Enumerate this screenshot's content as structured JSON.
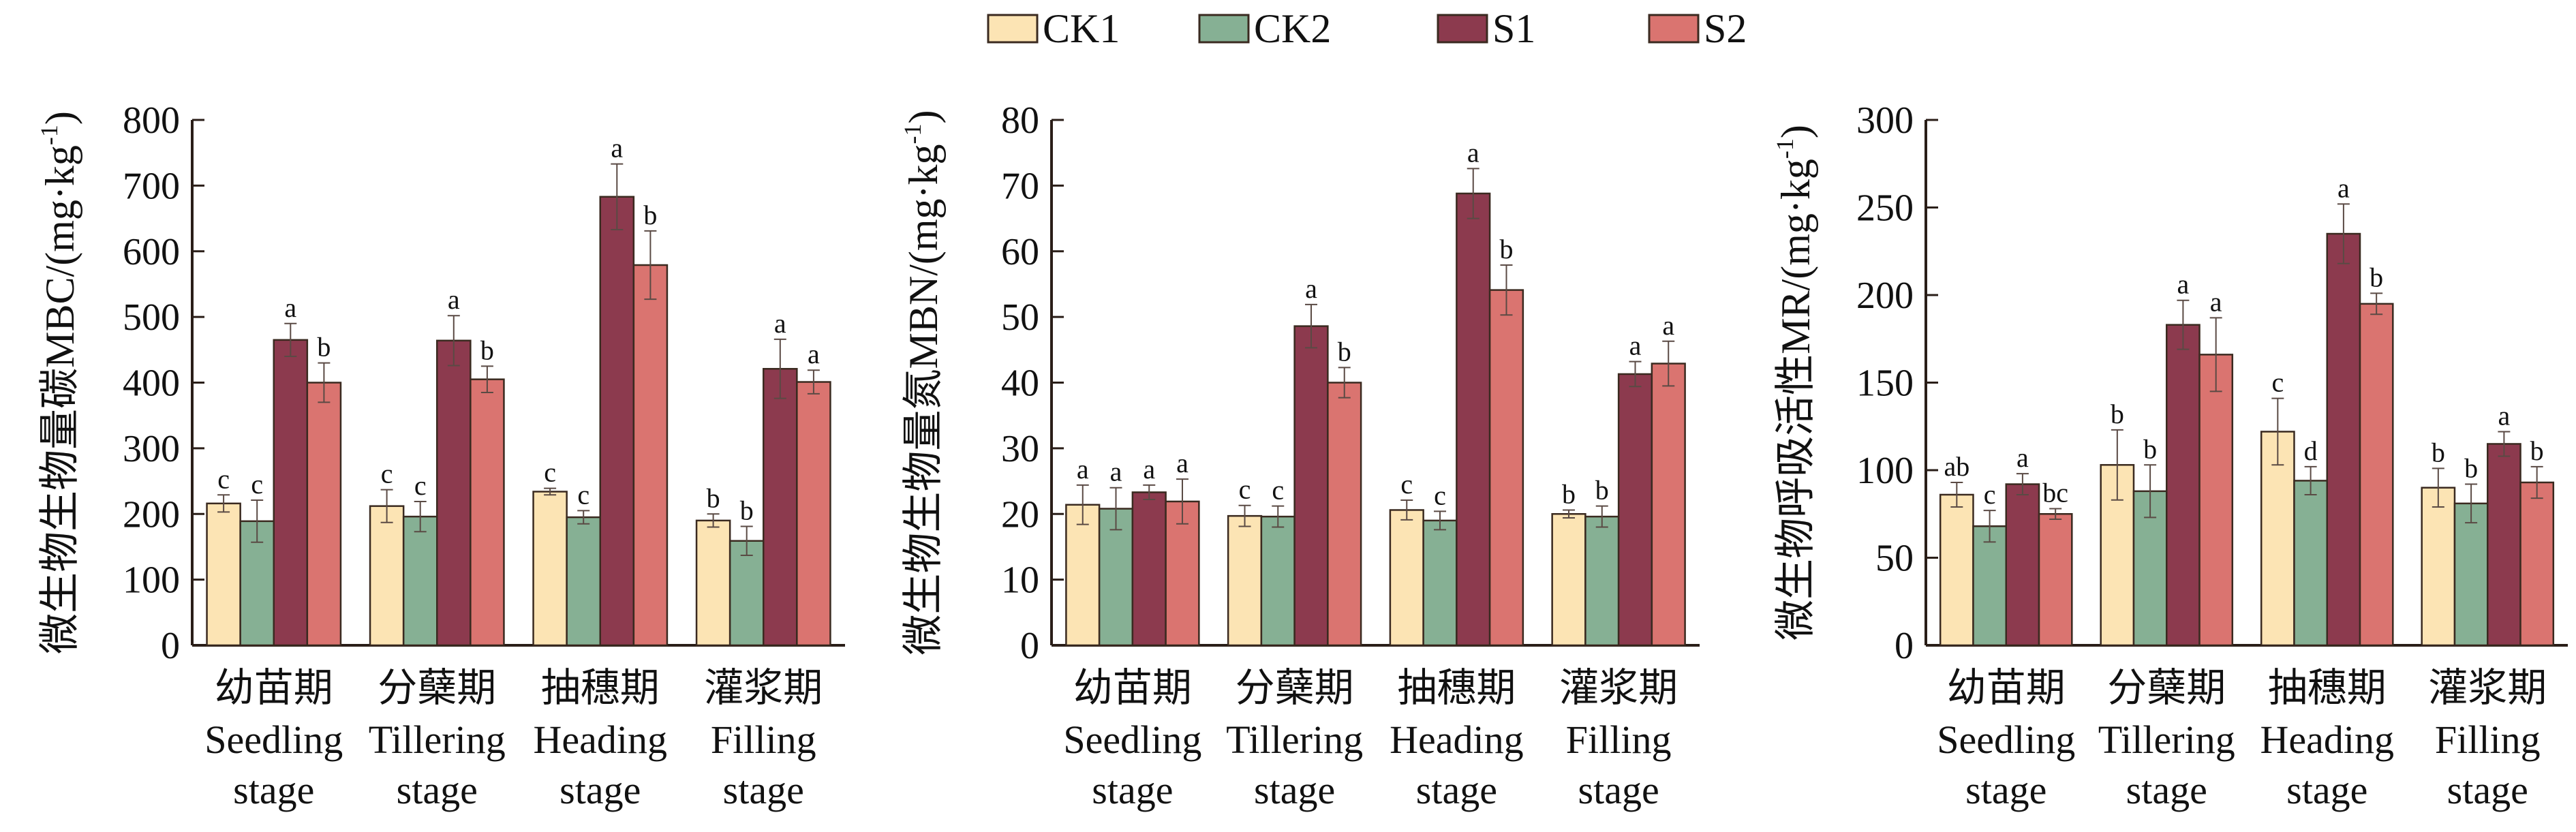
{
  "legend": [
    {
      "name": "CK1",
      "color": "#FCE4B4"
    },
    {
      "name": "CK2",
      "color": "#86B094"
    },
    {
      "name": "S1",
      "color": "#8C3A4E"
    },
    {
      "name": "S2",
      "color": "#DA7470"
    }
  ],
  "chart_data": [
    {
      "type": "bar",
      "ylabel": "微生物生物量碳MBC/(mg·kg⁻¹)",
      "ylabel_main": "微生物生物量碳MBC/(mg·kg",
      "ylabel_sup": "-1",
      "ylabel_close": ")",
      "ylim": [
        0,
        800
      ],
      "yticks": [
        0,
        100,
        200,
        300,
        400,
        500,
        600,
        700,
        800
      ],
      "categories_cn": [
        "幼苗期",
        "分蘖期",
        "抽穗期",
        "灌浆期"
      ],
      "categories_en_1": [
        "Seedling",
        "Tillering",
        "Heading",
        "Filling"
      ],
      "categories_en_2": [
        "stage",
        "stage",
        "stage",
        "stage"
      ],
      "series": [
        {
          "name": "CK1",
          "values": [
            216,
            212,
            234,
            190
          ],
          "errors": [
            13,
            25,
            5,
            10
          ],
          "letters": [
            "c",
            "c",
            "c",
            "b"
          ]
        },
        {
          "name": "CK2",
          "values": [
            189,
            196,
            195,
            159
          ],
          "errors": [
            32,
            23,
            10,
            22
          ],
          "letters": [
            "c",
            "c",
            "c",
            "b"
          ]
        },
        {
          "name": "S1",
          "values": [
            465,
            464,
            683,
            421
          ],
          "errors": [
            25,
            38,
            50,
            45
          ],
          "letters": [
            "a",
            "a",
            "a",
            "a"
          ]
        },
        {
          "name": "S2",
          "values": [
            400,
            405,
            579,
            401
          ],
          "errors": [
            30,
            20,
            52,
            18
          ],
          "letters": [
            "b",
            "b",
            "b",
            "a"
          ]
        }
      ]
    },
    {
      "type": "bar",
      "ylabel": "微生物生物量氮MBN/(mg·kg⁻¹)",
      "ylabel_main": "微生物生物量氮MBN/(mg·kg",
      "ylabel_sup": "-1",
      "ylabel_close": ")",
      "ylim": [
        0,
        80
      ],
      "yticks": [
        0,
        10,
        20,
        30,
        40,
        50,
        60,
        70,
        80
      ],
      "categories_cn": [
        "幼苗期",
        "分蘖期",
        "抽穗期",
        "灌浆期"
      ],
      "categories_en_1": [
        "Seedling",
        "Tillering",
        "Heading",
        "Filling"
      ],
      "categories_en_2": [
        "stage",
        "stage",
        "stage",
        "stage"
      ],
      "series": [
        {
          "name": "CK1",
          "values": [
            21.4,
            19.7,
            20.6,
            20.0
          ],
          "errors": [
            3.0,
            1.6,
            1.5,
            0.6
          ],
          "letters": [
            "a",
            "c",
            "c",
            "b"
          ]
        },
        {
          "name": "CK2",
          "values": [
            20.8,
            19.6,
            19.0,
            19.6
          ],
          "errors": [
            3.2,
            1.6,
            1.4,
            1.6
          ],
          "letters": [
            "a",
            "c",
            "c",
            "b"
          ]
        },
        {
          "name": "S1",
          "values": [
            23.3,
            48.6,
            68.8,
            41.3
          ],
          "errors": [
            1.1,
            3.3,
            3.8,
            1.9
          ],
          "letters": [
            "a",
            "a",
            "a",
            "a"
          ]
        },
        {
          "name": "S2",
          "values": [
            21.9,
            40.0,
            54.1,
            42.9
          ],
          "errors": [
            3.4,
            2.3,
            3.8,
            3.4
          ],
          "letters": [
            "a",
            "b",
            "b",
            "a"
          ]
        }
      ]
    },
    {
      "type": "bar",
      "ylabel": "微生物呼吸活性MR/(mg·kg⁻¹)",
      "ylabel_main": "微生物呼吸活性MR/(mg·kg",
      "ylabel_sup": "-1",
      "ylabel_close": ")",
      "ylim": [
        0,
        300
      ],
      "yticks": [
        0,
        50,
        100,
        150,
        200,
        250,
        300
      ],
      "categories_cn": [
        "幼苗期",
        "分蘖期",
        "抽穗期",
        "灌浆期"
      ],
      "categories_en_1": [
        "Seedling",
        "Tillering",
        "Heading",
        "Filling"
      ],
      "categories_en_2": [
        "stage",
        "stage",
        "stage",
        "stage"
      ],
      "series": [
        {
          "name": "CK1",
          "values": [
            86,
            103,
            122,
            90
          ],
          "errors": [
            7,
            20,
            19,
            11
          ],
          "letters": [
            "ab",
            "b",
            "c",
            "b"
          ]
        },
        {
          "name": "CK2",
          "values": [
            68,
            88,
            94,
            81
          ],
          "errors": [
            9,
            15,
            8,
            11
          ],
          "letters": [
            "c",
            "b",
            "d",
            "b"
          ]
        },
        {
          "name": "S1",
          "values": [
            92,
            183,
            235,
            115
          ],
          "errors": [
            6,
            14,
            17,
            7
          ],
          "letters": [
            "a",
            "a",
            "a",
            "a"
          ]
        },
        {
          "name": "S2",
          "values": [
            75,
            166,
            195,
            93
          ],
          "errors": [
            3,
            21,
            6,
            9
          ],
          "letters": [
            "bc",
            "a",
            "b",
            "b"
          ]
        }
      ]
    }
  ]
}
